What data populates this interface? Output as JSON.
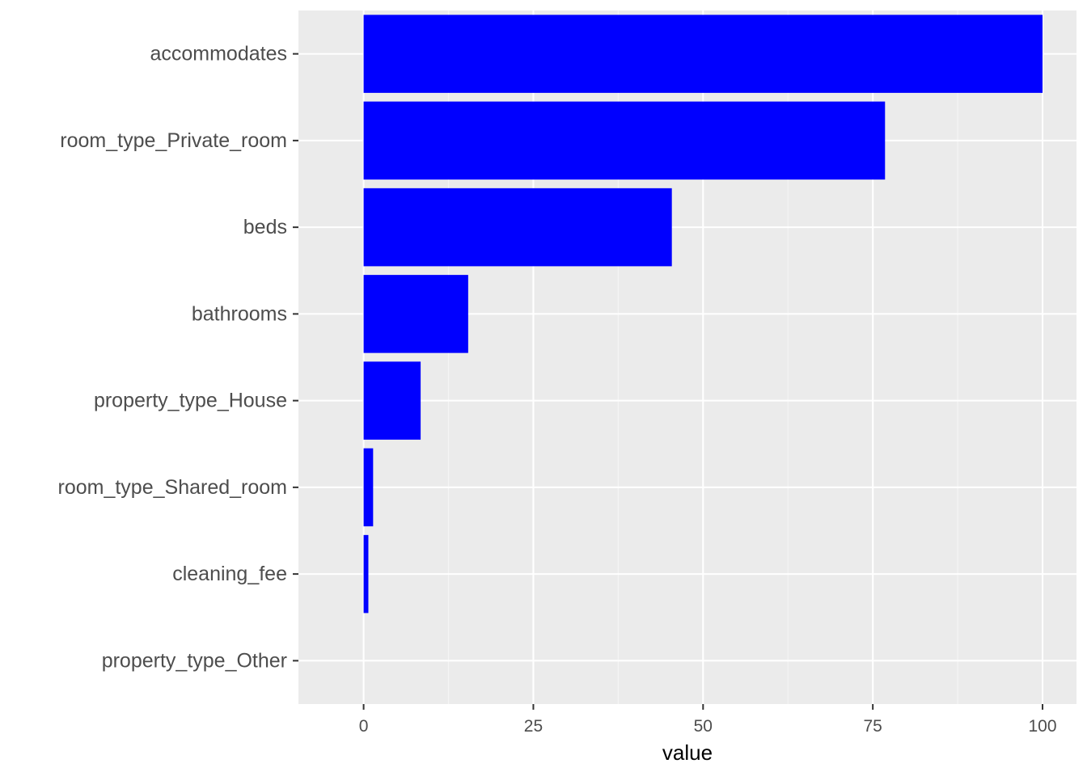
{
  "chart_data": {
    "type": "bar",
    "orientation": "horizontal",
    "categories": [
      "accommodates",
      "room_type_Private_room",
      "beds",
      "bathrooms",
      "property_type_House",
      "room_type_Shared_room",
      "cleaning_fee",
      "property_type_Other"
    ],
    "values": [
      100,
      76.8,
      45.4,
      15.4,
      8.4,
      1.4,
      0.7,
      0
    ],
    "xlabel": "value",
    "ylabel": "",
    "xlim": [
      -9.6,
      105
    ],
    "x_ticks": [
      0,
      25,
      50,
      75,
      100
    ],
    "x_tick_labels": [
      "0",
      "25",
      "50",
      "75",
      "100"
    ],
    "grid": true,
    "legend": "none",
    "colors": {
      "bar": "#0000ff",
      "panel_background": "#ebebeb",
      "grid_major": "#ffffff",
      "grid_minor": "#f5f5f5",
      "tick_text": "#4d4d4d",
      "tick_mark": "#333333"
    }
  }
}
